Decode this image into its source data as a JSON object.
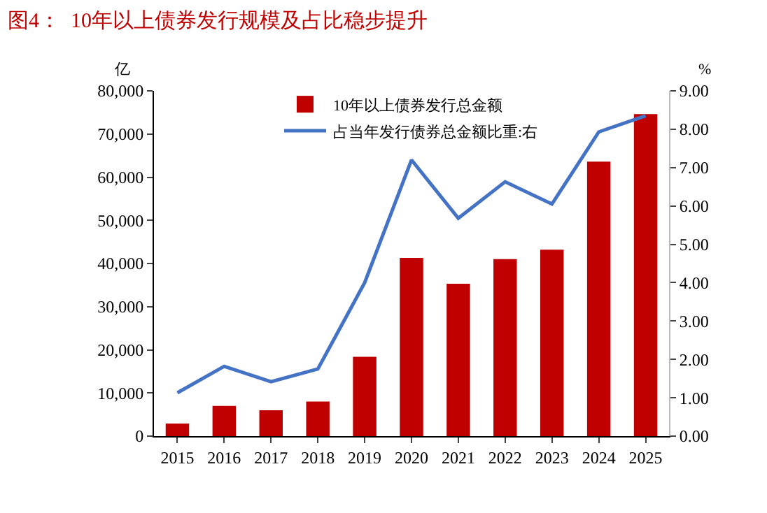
{
  "chart_data": {
    "type": "bar",
    "title": "图4：  10年以上债券发行规模及占比稳步提升",
    "categories": [
      "2015",
      "2016",
      "2017",
      "2018",
      "2019",
      "2020",
      "2021",
      "2022",
      "2023",
      "2024",
      "2025"
    ],
    "series": [
      {
        "name": "10年以上债券发行总金额",
        "color": "#c00000",
        "values": [
          2900,
          7000,
          6000,
          8000,
          18400,
          41300,
          35300,
          41000,
          43200,
          63600,
          74600
        ]
      },
      {
        "name": "占当年发行债券总金额比重:右",
        "type": "line",
        "axis": "y2",
        "color": "#4472c4",
        "values": [
          1.13,
          1.82,
          1.42,
          1.75,
          4.0,
          7.2,
          5.68,
          6.63,
          6.05,
          7.93,
          8.35
        ]
      }
    ],
    "ylabel": "亿",
    "y2label": "%",
    "ylim": [
      0,
      80000
    ],
    "yticks": [
      0,
      {
        "value": 10000,
        "label": "10,000"
      },
      {
        "value": 20000,
        "label": "20,000"
      },
      {
        "value": 30000,
        "label": "30,000"
      },
      {
        "value": 40000,
        "label": "40,000"
      },
      {
        "value": 50000,
        "label": "50,000"
      },
      {
        "value": 60000,
        "label": "60,000"
      },
      {
        "value": 70000,
        "label": "70,000"
      },
      {
        "value": 80000,
        "label": "80,000"
      }
    ],
    "y2lim": [
      0,
      9
    ],
    "y2ticks": [
      {
        "value": 0,
        "label": "0.00"
      },
      {
        "value": 1,
        "label": "1.00"
      },
      {
        "value": 2,
        "label": "2.00"
      },
      {
        "value": 3,
        "label": "3.00"
      },
      {
        "value": 4,
        "label": "4.00"
      },
      {
        "value": 5,
        "label": "5.00"
      },
      {
        "value": 6,
        "label": "6.00"
      },
      {
        "value": 7,
        "label": "7.00"
      },
      {
        "value": 8,
        "label": "8.00"
      },
      {
        "value": 9,
        "label": "9.00"
      }
    ],
    "grid": false,
    "legend": "top"
  }
}
